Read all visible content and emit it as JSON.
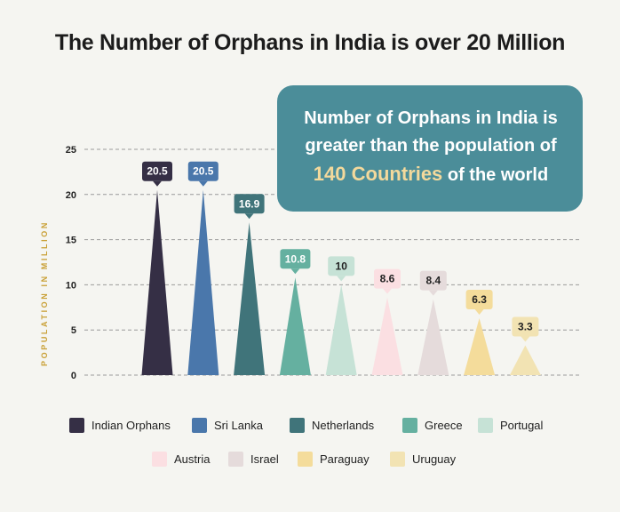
{
  "title": "The Number of Orphans in India is over 20 Million",
  "callout": {
    "line1": "Number of Orphans in India is",
    "line2": "greater than the population of",
    "highlight": "140 Countries",
    "line3_rest": " of the world"
  },
  "colors": {
    "background": "#f5f5f1",
    "callout": "#4b8d99",
    "highlight": "#f3d99c",
    "axis_label": "#c9a036"
  },
  "chart_data": {
    "type": "bar",
    "ylabel": "POPULATION IN MILLION",
    "ylim": [
      0,
      25
    ],
    "yticks": [
      0,
      5,
      10,
      15,
      20,
      25
    ],
    "grid": true,
    "legend_position": "bottom",
    "series": [
      {
        "name": "Indian Orphans",
        "value": 20.5,
        "label": "20.5",
        "color": "#352f45",
        "label_color": "#ffffff"
      },
      {
        "name": "Sri Lanka",
        "value": 20.5,
        "label": "20.5",
        "color": "#4a77ab",
        "label_color": "#ffffff"
      },
      {
        "name": "Netherlands",
        "value": 16.9,
        "label": "16.9",
        "color": "#40747a",
        "label_color": "#ffffff"
      },
      {
        "name": "Greece",
        "value": 10.8,
        "label": "10.8",
        "color": "#65b0a0",
        "label_color": "#ffffff"
      },
      {
        "name": "Portugal",
        "value": 10,
        "label": "10",
        "color": "#c6e2d6",
        "label_color": "#222222"
      },
      {
        "name": "Austria",
        "value": 8.6,
        "label": "8.6",
        "color": "#fbdfe2",
        "label_color": "#222222"
      },
      {
        "name": "Israel",
        "value": 8.4,
        "label": "8.4",
        "color": "#e5dbdb",
        "label_color": "#222222"
      },
      {
        "name": "Paraguay",
        "value": 6.3,
        "label": "6.3",
        "color": "#f4dc9b",
        "label_color": "#222222"
      },
      {
        "name": "Uruguay",
        "value": 3.3,
        "label": "3.3",
        "color": "#f2e3b3",
        "label_color": "#222222"
      }
    ]
  }
}
